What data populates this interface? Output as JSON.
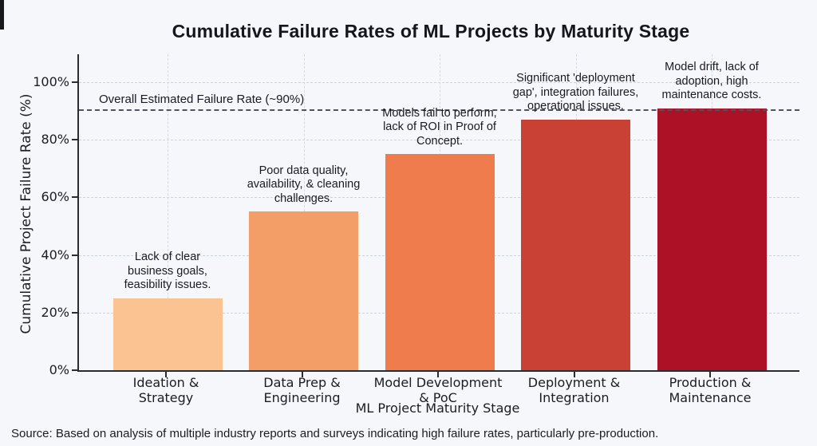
{
  "page": {
    "background": "#f5f7fa"
  },
  "chart_data": {
    "type": "bar",
    "title": "Cumulative Failure Rates of ML Projects by Maturity Stage",
    "xlabel": "ML Project Maturity Stage",
    "ylabel": "Cumulative Project Failure Rate (%)",
    "categories": [
      "Ideation &\nStrategy",
      "Data Prep &\nEngineering",
      "Model Development\n& PoC",
      "Deployment &\nIntegration",
      "Production &\nMaintenance"
    ],
    "values": [
      25,
      55,
      75,
      87,
      91
    ],
    "bar_colors": [
      "#FAC391",
      "#F39E66",
      "#EE7C4D",
      "#C84134",
      "#AC1126"
    ],
    "annotations": [
      "Lack of clear\nbusiness goals,\nfeasibility issues.",
      "Poor data quality,\navailability, & cleaning\nchallenges.",
      "Models fail to perform,\nlack of ROI in Proof of\nConcept.",
      "Significant 'deployment\ngap', integration failures,\noperational issues.",
      "Model drift, lack of\nadoption, high\nmaintenance costs."
    ],
    "y_ticks": [
      "0%",
      "20%",
      "40%",
      "60%",
      "80%",
      "100%"
    ],
    "y_tick_values": [
      0,
      20,
      40,
      60,
      80,
      100
    ],
    "ylim": [
      0,
      109.7
    ],
    "grid": true,
    "legend": false,
    "threshold": {
      "value": 90,
      "label": "Overall Estimated Failure Rate (~90%)",
      "color": "#4d5563"
    }
  },
  "footer": {
    "source": "Source: Based on analysis of multiple industry reports and surveys indicating high failure rates, particularly pre-production."
  }
}
